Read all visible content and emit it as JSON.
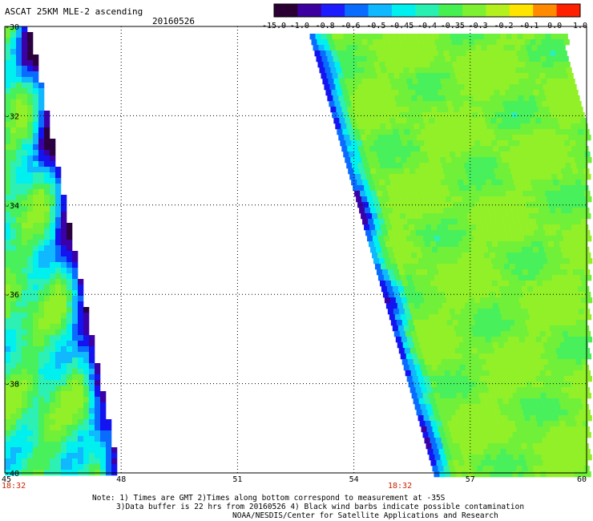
{
  "title": "ASCAT 25KM MLE-2 ascending",
  "date": "20160526",
  "colorbar": {
    "labels": [
      "-15.0",
      "-1.0",
      "-0.8",
      "-0.6",
      "-0.5",
      "-0.45",
      "-0.4",
      "-0.35",
      "-0.3",
      "-0.2",
      "-0.1",
      "0.0",
      "1.0"
    ],
    "colors": [
      "#2a0033",
      "#3c00a0",
      "#1c1cff",
      "#0a6cff",
      "#0fb8ff",
      "#00f0f0",
      "#28f0b0",
      "#46f050",
      "#7df032",
      "#b4f01e",
      "#ffe400",
      "#ff8a00",
      "#ff2000"
    ]
  },
  "map": {
    "lon_ticks": [
      "45",
      "48",
      "51",
      "54",
      "57",
      "60"
    ],
    "lat_ticks": [
      "-30",
      "-32",
      "-34",
      "-36",
      "-38",
      "-40"
    ],
    "pass_times": [
      "18:32",
      "18:32"
    ]
  },
  "notes": [
    "Note: 1) Times are GMT 2)Times along bottom correspond to measurement at -35S",
    "3)Data buffer is 22 hrs from 20160526 4) Black wind barbs indicate possible contamination",
    "NOAA/NESDIS/Center for Satellite Applications and Research"
  ]
}
